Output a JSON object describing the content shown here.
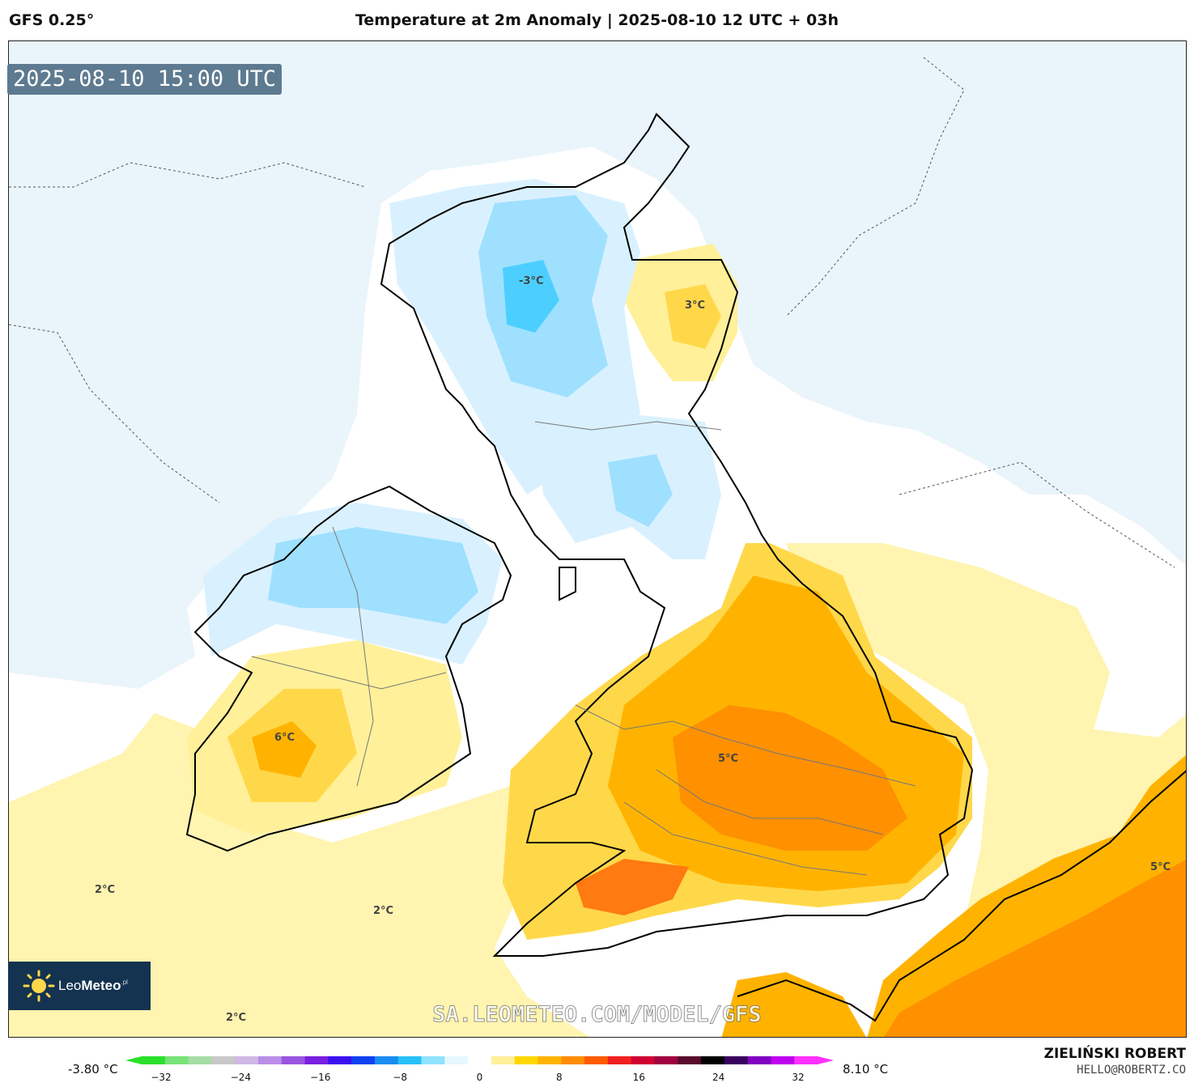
{
  "header": {
    "model": "GFS 0.25°",
    "title": "Temperature at 2m Anomaly | 2025-08-10 12 UTC + 03h"
  },
  "map": {
    "valid_time": "2025-08-10 15:00 UTC",
    "labels": {
      "scotland_cold": "-3°C",
      "scotland_east": "3°C",
      "ireland_south": "6°C",
      "england_mid": "5°C",
      "atlantic_west": "2°C",
      "celtic_sea": "2°C",
      "atlantic_south": "2°C",
      "continent": "5°C"
    },
    "colors": {
      "ocean_cold": "#eaf4fb",
      "ocean_neutral": "#ffffff",
      "warm_1": "#fff4b0",
      "warm_2": "#ffd84a",
      "warm_3": "#ffb300",
      "warm_4": "#ff9000",
      "warm_5": "#ff7a10",
      "cold_1": "#d9f1ff",
      "cold_2": "#9fe0ff",
      "cold_3": "#4ccfff"
    }
  },
  "branding": {
    "logo_text_light": "Leo",
    "logo_text_bold": "Meteo",
    "logo_suffix": ".pl",
    "watermark": "SA.LEOMETEO.COM/MODEL/GFS"
  },
  "legend": {
    "min_label": "-3.80 °C",
    "max_label": "8.10 °C",
    "ticks": [
      "−32",
      "−24",
      "−16",
      "−8",
      "0",
      "8",
      "16",
      "24",
      "32"
    ],
    "colors": [
      "#2be02b",
      "#77e277",
      "#a6dca6",
      "#c8c8c8",
      "#d0b8e6",
      "#b88ee6",
      "#9a55e0",
      "#7a1ee0",
      "#3a10f0",
      "#1040f0",
      "#1a8cf0",
      "#28c0f8",
      "#90e2ff",
      "#e6f8ff",
      "#ffffff",
      "#fff099",
      "#ffd700",
      "#ffb300",
      "#ff8c00",
      "#ff5a00",
      "#f02020",
      "#d00030",
      "#a00040",
      "#5a0a2a",
      "#000000",
      "#3a0060",
      "#8000c0",
      "#c000f0",
      "#ff30ff"
    ]
  },
  "footer": {
    "author": "ZIELIŃSKI ROBERT",
    "contact": "HELLO@ROBERTZ.CO"
  }
}
